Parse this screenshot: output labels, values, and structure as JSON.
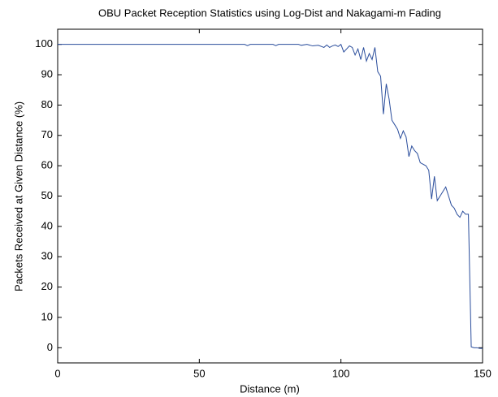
{
  "chart_data": {
    "type": "line",
    "title": "OBU Packet Reception Statistics using Log-Dist and Nakagami-m Fading",
    "xlabel": "Distance (m)",
    "ylabel": "Packets Received at Given Distance (%)",
    "x": [
      0,
      10,
      20,
      30,
      40,
      50,
      60,
      66,
      67,
      68,
      76,
      77,
      78,
      85,
      86,
      88,
      90,
      92,
      94,
      95,
      96,
      97,
      98,
      99,
      100,
      101,
      102,
      103,
      104,
      105,
      106,
      107,
      108,
      109,
      110,
      111,
      112,
      113,
      114,
      115,
      116,
      117,
      118,
      119,
      120,
      121,
      122,
      123,
      124,
      125,
      126,
      127,
      128,
      129,
      130,
      131,
      132,
      133,
      134,
      135,
      136,
      137,
      138,
      139,
      140,
      141,
      142,
      143,
      144,
      145,
      146,
      147,
      148,
      149,
      150
    ],
    "series": [
      {
        "name": "Packets Received",
        "color": "#2a4d9c",
        "values": [
          100,
          100,
          100,
          100,
          100,
          100,
          100,
          100,
          99.6,
          100,
          100,
          99.6,
          100,
          100,
          99.7,
          100,
          99.5,
          99.7,
          99.0,
          99.8,
          99.0,
          99.5,
          99.8,
          99.3,
          100,
          97.5,
          98.5,
          99.5,
          99,
          96.5,
          98.5,
          95,
          99,
          94.5,
          97,
          95,
          99,
          91,
          89.5,
          77,
          87,
          82,
          75,
          73.5,
          72,
          69,
          71.5,
          69.5,
          63,
          66.5,
          65,
          64,
          61,
          60.5,
          60,
          58.5,
          49,
          56.5,
          48.5,
          50,
          51.5,
          53,
          50,
          47,
          46,
          44,
          43,
          45,
          44,
          44,
          0.3,
          0,
          0,
          -0.2,
          -0.2
        ]
      }
    ],
    "xlim": [
      0,
      150
    ],
    "xticks": [
      0,
      50,
      100,
      150
    ],
    "ylim": [
      -5,
      105
    ],
    "yticks": [
      0,
      10,
      20,
      30,
      40,
      50,
      60,
      70,
      80,
      90,
      100
    ],
    "grid": false
  }
}
